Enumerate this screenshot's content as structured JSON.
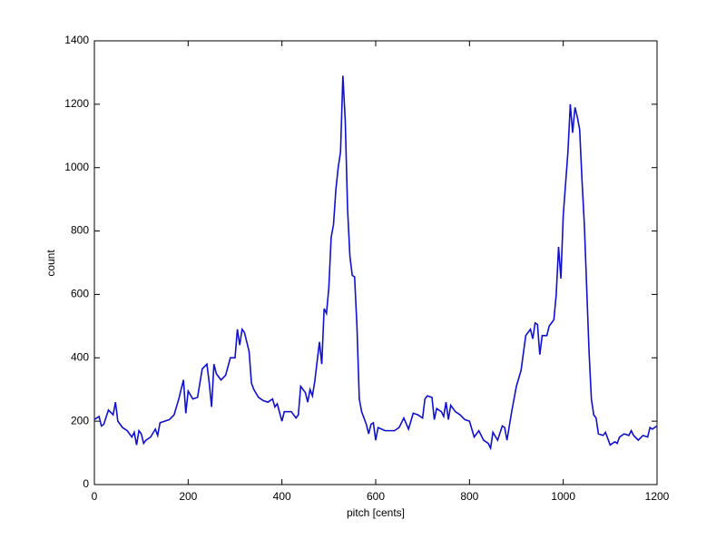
{
  "chart_data": {
    "type": "line",
    "xlabel": "pitch [cents]",
    "ylabel": "count",
    "x": [
      0,
      10,
      15,
      20,
      30,
      40,
      45,
      50,
      60,
      70,
      80,
      85,
      90,
      95,
      100,
      105,
      110,
      120,
      130,
      135,
      140,
      150,
      160,
      170,
      180,
      190,
      195,
      200,
      210,
      220,
      230,
      240,
      245,
      250,
      255,
      260,
      270,
      280,
      290,
      300,
      305,
      310,
      315,
      320,
      330,
      335,
      340,
      350,
      360,
      370,
      380,
      385,
      390,
      400,
      405,
      420,
      430,
      435,
      440,
      450,
      455,
      460,
      465,
      470,
      480,
      485,
      490,
      495,
      500,
      505,
      510,
      515,
      520,
      525,
      530,
      535,
      540,
      545,
      550,
      555,
      560,
      565,
      570,
      580,
      585,
      590,
      595,
      600,
      605,
      620,
      640,
      650,
      660,
      670,
      680,
      690,
      700,
      705,
      710,
      720,
      725,
      730,
      740,
      745,
      750,
      755,
      760,
      770,
      780,
      790,
      800,
      810,
      820,
      830,
      840,
      845,
      850,
      860,
      870,
      875,
      880,
      890,
      900,
      910,
      920,
      930,
      935,
      940,
      945,
      950,
      955,
      965,
      970,
      980,
      985,
      990,
      995,
      1000,
      1010,
      1015,
      1020,
      1025,
      1030,
      1035,
      1040,
      1045,
      1050,
      1055,
      1060,
      1065,
      1070,
      1075,
      1085,
      1090,
      1100,
      1110,
      1115,
      1120,
      1130,
      1140,
      1145,
      1150,
      1160,
      1170,
      1180,
      1185,
      1190,
      1200
    ],
    "series": [
      {
        "color": "#1010d0",
        "values": [
          205,
          215,
          185,
          190,
          235,
          220,
          260,
          200,
          180,
          170,
          150,
          165,
          125,
          170,
          160,
          130,
          140,
          150,
          175,
          155,
          195,
          200,
          205,
          220,
          270,
          330,
          225,
          295,
          270,
          275,
          365,
          380,
          320,
          245,
          380,
          350,
          330,
          345,
          400,
          400,
          490,
          440,
          490,
          480,
          420,
          320,
          300,
          275,
          265,
          260,
          270,
          245,
          255,
          200,
          230,
          230,
          210,
          220,
          310,
          290,
          260,
          300,
          280,
          325,
          450,
          380,
          555,
          540,
          620,
          780,
          820,
          930,
          1000,
          1050,
          1290,
          1150,
          870,
          720,
          660,
          655,
          500,
          270,
          230,
          190,
          160,
          190,
          195,
          140,
          180,
          170,
          170,
          180,
          210,
          175,
          225,
          220,
          210,
          270,
          280,
          275,
          205,
          240,
          230,
          215,
          260,
          205,
          250,
          230,
          220,
          205,
          200,
          150,
          170,
          140,
          130,
          115,
          165,
          140,
          185,
          180,
          140,
          230,
          310,
          360,
          470,
          490,
          460,
          510,
          505,
          410,
          470,
          470,
          500,
          520,
          600,
          750,
          650,
          850,
          1050,
          1200,
          1110,
          1190,
          1160,
          1120,
          960,
          820,
          620,
          420,
          270,
          220,
          210,
          160,
          155,
          165,
          125,
          135,
          130,
          150,
          160,
          155,
          170,
          155,
          140,
          155,
          150,
          180,
          175,
          185
        ]
      }
    ],
    "xlim": [
      0,
      1200
    ],
    "xticks": [
      0,
      200,
      400,
      600,
      800,
      1000,
      1200
    ],
    "ylim": [
      0,
      1400
    ],
    "yticks": [
      0,
      200,
      400,
      600,
      800,
      1000,
      1200,
      1400
    ]
  }
}
